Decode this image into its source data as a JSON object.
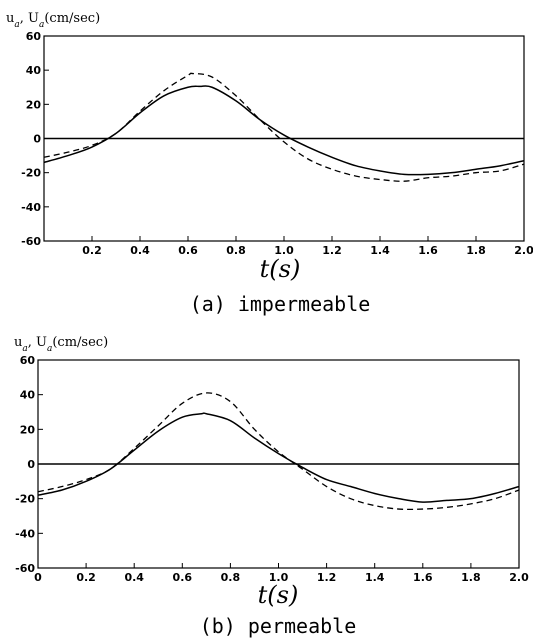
{
  "chart_data": [
    {
      "type": "line",
      "caption": "(a) impermeable",
      "ylabel": "u_a, U_a(cm/sec)",
      "xlabel": "t(s)",
      "xlim": [
        0,
        2.0
      ],
      "ylim": [
        -60,
        60
      ],
      "xticks": [
        0.2,
        0.4,
        0.6,
        0.8,
        1.0,
        1.2,
        1.4,
        1.6,
        1.8,
        2.0
      ],
      "xtick_labels": [
        "0.2",
        "0.4",
        "0.6",
        "0.8",
        "1.0",
        "1.2",
        "1.4",
        "1.6",
        "1.8",
        "2.0"
      ],
      "yticks": [
        -60,
        -40,
        -20,
        0,
        20,
        40,
        60
      ],
      "ytick_labels": [
        "-60",
        "-40",
        "-20",
        "0",
        "20",
        "40",
        "60"
      ],
      "grid": false,
      "series": [
        {
          "style": "solid",
          "x": [
            0.0,
            0.1,
            0.2,
            0.3,
            0.4,
            0.5,
            0.6,
            0.65,
            0.7,
            0.8,
            0.9,
            1.0,
            1.1,
            1.2,
            1.3,
            1.4,
            1.5,
            1.6,
            1.7,
            1.8,
            1.9,
            2.0
          ],
          "y": [
            -14,
            -10,
            -5,
            3,
            15,
            25,
            30,
            30.5,
            30,
            22,
            11,
            2,
            -5,
            -11,
            -16,
            -19,
            -21,
            -21,
            -20,
            -18,
            -16,
            -13
          ]
        },
        {
          "style": "dashed",
          "x": [
            0.0,
            0.1,
            0.2,
            0.3,
            0.4,
            0.5,
            0.6,
            0.62,
            0.7,
            0.8,
            0.9,
            1.0,
            1.1,
            1.2,
            1.3,
            1.4,
            1.5,
            1.6,
            1.7,
            1.8,
            1.9,
            2.0
          ],
          "y": [
            -11,
            -8,
            -4,
            3,
            16,
            28,
            37,
            38,
            36,
            25,
            11,
            -2,
            -12,
            -18,
            -22,
            -24,
            -25,
            -23,
            -22,
            -20,
            -19,
            -15
          ]
        }
      ]
    },
    {
      "type": "line",
      "caption": "(b) permeable",
      "ylabel": "u_a, U_a(cm/sec)",
      "xlabel": "t(s)",
      "xlim": [
        0,
        2.0
      ],
      "ylim": [
        -60,
        60
      ],
      "xticks": [
        0,
        0.2,
        0.4,
        0.6,
        0.8,
        1.0,
        1.2,
        1.4,
        1.6,
        1.8,
        2.0
      ],
      "xtick_labels": [
        "0",
        "0.2",
        "0.4",
        "0.6",
        "0.8",
        "1.0",
        "1.2",
        "1.4",
        "1.6",
        "1.8",
        "2.0"
      ],
      "yticks": [
        -60,
        -40,
        -20,
        0,
        20,
        40,
        60
      ],
      "ytick_labels": [
        "-60",
        "-40",
        "-20",
        "0",
        "20",
        "40",
        "60"
      ],
      "grid": false,
      "series": [
        {
          "style": "solid",
          "x": [
            0.0,
            0.1,
            0.2,
            0.3,
            0.4,
            0.5,
            0.6,
            0.68,
            0.7,
            0.8,
            0.9,
            1.0,
            1.1,
            1.2,
            1.3,
            1.4,
            1.5,
            1.6,
            1.7,
            1.8,
            1.9,
            2.0
          ],
          "y": [
            -18,
            -15,
            -10,
            -3,
            8,
            19,
            27,
            29,
            29,
            25,
            15,
            6,
            -2,
            -9,
            -13,
            -17,
            -20,
            -22,
            -21,
            -20,
            -17,
            -13
          ]
        },
        {
          "style": "dashed",
          "x": [
            0.0,
            0.1,
            0.2,
            0.3,
            0.4,
            0.5,
            0.6,
            0.7,
            0.8,
            0.9,
            1.0,
            1.1,
            1.2,
            1.3,
            1.4,
            1.5,
            1.6,
            1.7,
            1.8,
            1.9,
            2.0
          ],
          "y": [
            -16,
            -13,
            -9,
            -3,
            9,
            22,
            35,
            41,
            36,
            20,
            7,
            -3,
            -13,
            -20,
            -24,
            -26,
            -26,
            -25,
            -23,
            -20,
            -15
          ]
        }
      ]
    }
  ]
}
